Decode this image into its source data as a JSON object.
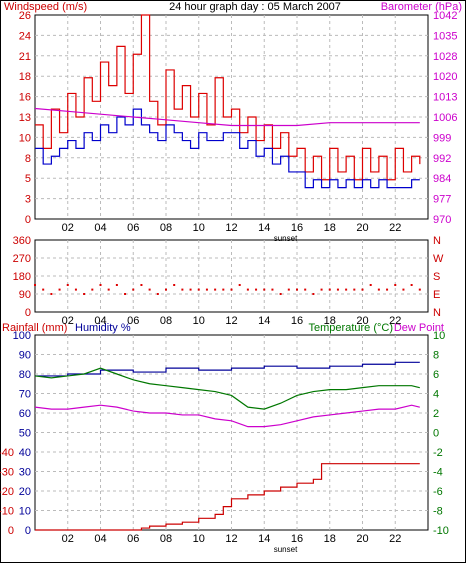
{
  "chart_data": [
    {
      "type": "line",
      "title": "24 hour graph day : 05 March 2007",
      "left_axis_label": "Windspeed (m/s)",
      "right_axis_label": "Barometer (hPa)",
      "left_ylim": [
        0,
        26
      ],
      "left_ticks": [
        "0",
        "3",
        "5",
        "8",
        "10",
        "13",
        "16",
        "18",
        "21",
        "24",
        "26"
      ],
      "right_ylim": [
        970,
        1042
      ],
      "right_ticks": [
        "970",
        "977",
        "984",
        "992",
        "999",
        "1006",
        "1013",
        "1020",
        "1028",
        "1035",
        "1042"
      ],
      "x_ticks": [
        "02",
        "04",
        "06",
        "08",
        "10",
        "12",
        "14",
        "16",
        "18",
        "20",
        "22"
      ],
      "x_annotation": "sunset",
      "grid": true,
      "series": [
        {
          "color": "#dd0000",
          "axis": "left",
          "x": [
            0,
            0.5,
            1,
            1.5,
            2,
            2.5,
            3,
            3.5,
            4,
            4.5,
            5,
            5.5,
            6,
            6.5,
            7,
            7.5,
            8,
            8.5,
            9,
            9.5,
            10,
            10.5,
            11,
            11.5,
            12,
            12.5,
            13,
            13.5,
            14,
            14.5,
            15,
            15.5,
            16,
            16.5,
            17,
            17.5,
            18,
            18.5,
            19,
            19.5,
            20,
            20.5,
            21,
            21.5,
            22,
            22.5,
            23,
            23.5
          ],
          "values": [
            12,
            9,
            14,
            11,
            16,
            13,
            18,
            15,
            20,
            17,
            22,
            16,
            21,
            26,
            15,
            12,
            19,
            14,
            17,
            13,
            16,
            12,
            18,
            13,
            14,
            11,
            13,
            10,
            12,
            9,
            11,
            8,
            9,
            6,
            8,
            5,
            9,
            6,
            8,
            5,
            9,
            6,
            8,
            5,
            9,
            6,
            8,
            7
          ]
        },
        {
          "color": "#0000cc",
          "axis": "left",
          "x": [
            0,
            0.5,
            1,
            1.5,
            2,
            2.5,
            3,
            3.5,
            4,
            4.5,
            5,
            5.5,
            6,
            6.5,
            7,
            7.5,
            8,
            8.5,
            9,
            9.5,
            10,
            10.5,
            11,
            11.5,
            12,
            12.5,
            13,
            13.5,
            14,
            14.5,
            15,
            15.5,
            16,
            16.5,
            17,
            17.5,
            18,
            18.5,
            19,
            19.5,
            20,
            20.5,
            21,
            21.5,
            22,
            22.5,
            23,
            23.5
          ],
          "values": [
            9,
            7,
            8,
            9,
            10,
            9,
            11,
            10,
            12,
            11,
            13,
            12,
            14,
            12,
            11,
            10,
            12,
            11,
            10,
            9,
            11,
            10,
            10,
            11,
            11,
            9,
            10,
            8,
            9,
            7,
            8,
            6,
            6,
            4,
            5,
            4,
            5,
            4,
            5,
            4,
            5,
            4,
            5,
            4,
            4,
            4,
            5,
            5
          ]
        },
        {
          "color": "#cc00cc",
          "axis": "right",
          "x": [
            0,
            2,
            4,
            6,
            8,
            10,
            12,
            14,
            16,
            18,
            20,
            22,
            23.5
          ],
          "values": [
            1009,
            1008,
            1007,
            1006,
            1005,
            1004,
            1003,
            1003,
            1003,
            1004,
            1004,
            1004,
            1004
          ]
        }
      ]
    },
    {
      "type": "scatter",
      "left_ylim": [
        0,
        360
      ],
      "left_ticks": [
        "0",
        "90",
        "180",
        "270",
        "360"
      ],
      "right_ticks": [
        "N",
        "E",
        "S",
        "W",
        "N"
      ],
      "x_ticks": [
        "02",
        "04",
        "06",
        "08",
        "10",
        "12",
        "14",
        "16",
        "18",
        "20",
        "22"
      ],
      "grid": true,
      "series": [
        {
          "color": "#dd0000",
          "x": [
            0,
            0.5,
            1,
            1.5,
            2,
            2.5,
            3,
            3.5,
            4,
            4.5,
            5,
            5.5,
            6,
            6.5,
            7,
            7.5,
            8,
            8.5,
            9,
            9.5,
            10,
            10.5,
            11,
            11.5,
            12,
            12.5,
            13,
            13.5,
            14,
            14.5,
            15,
            15.5,
            16,
            16.5,
            17,
            17.5,
            18,
            18.5,
            19,
            19.5,
            20,
            20.5,
            21,
            21.5,
            22,
            22.5,
            23,
            23.5
          ],
          "values": [
            135,
            112,
            90,
            112,
            135,
            112,
            90,
            112,
            135,
            112,
            135,
            90,
            112,
            135,
            112,
            90,
            112,
            135,
            112,
            112,
            112,
            112,
            112,
            112,
            112,
            135,
            112,
            112,
            112,
            112,
            90,
            112,
            112,
            112,
            90,
            112,
            112,
            112,
            112,
            112,
            112,
            135,
            112,
            112,
            135,
            112,
            135,
            112
          ]
        }
      ]
    },
    {
      "type": "line",
      "left_axis_label": "Rainfall (mm)",
      "left_axis_label_2": "Humidity %",
      "right_axis_label": "Temperature (°C)",
      "right_axis_label_2": "Dew Point",
      "left_ylim": [
        0,
        100
      ],
      "left_ticks": [
        "0",
        "10",
        "20",
        "30",
        "40",
        "50",
        "60",
        "70",
        "80",
        "90",
        "100"
      ],
      "left_ticks_red": [
        "0",
        "-10",
        "-20",
        "-30",
        "-40"
      ],
      "right_ylim": [
        -10,
        10
      ],
      "right_ticks": [
        "-10",
        "-8",
        "-6",
        "-4",
        "-2",
        "0",
        "2",
        "4",
        "6",
        "8",
        "10"
      ],
      "x_ticks": [
        "02",
        "04",
        "06",
        "08",
        "10",
        "12",
        "14",
        "16",
        "18",
        "20",
        "22"
      ],
      "x_annotation": "sunset",
      "grid": true,
      "series": [
        {
          "color": "#000099",
          "axis": "left",
          "x": [
            0,
            2,
            4,
            6,
            8,
            10,
            12,
            14,
            16,
            18,
            20,
            22,
            23.5
          ],
          "values": [
            79,
            80,
            82,
            81,
            83,
            82,
            83,
            84,
            83,
            84,
            85,
            86,
            86
          ]
        },
        {
          "color": "#007700",
          "axis": "right",
          "x": [
            0,
            1,
            2,
            3,
            4,
            5,
            6,
            7,
            8,
            9,
            10,
            11,
            12,
            13,
            14,
            15,
            16,
            17,
            18,
            19,
            20,
            21,
            22,
            23,
            23.5
          ],
          "values": [
            5.8,
            5.6,
            5.8,
            6.0,
            6.6,
            6.0,
            5.4,
            5.0,
            4.8,
            4.6,
            4.4,
            4.2,
            3.8,
            2.6,
            2.4,
            3.0,
            3.8,
            4.2,
            4.4,
            4.4,
            4.6,
            4.8,
            4.8,
            4.8,
            4.6
          ]
        },
        {
          "color": "#cc00cc",
          "axis": "right",
          "x": [
            0,
            1,
            2,
            3,
            4,
            5,
            6,
            7,
            8,
            9,
            10,
            11,
            12,
            13,
            14,
            15,
            16,
            17,
            18,
            19,
            20,
            21,
            22,
            23,
            23.5
          ],
          "values": [
            2.6,
            2.4,
            2.4,
            2.6,
            2.8,
            2.6,
            2.2,
            2.0,
            2.0,
            1.8,
            1.8,
            1.4,
            1.2,
            0.6,
            0.6,
            0.8,
            1.2,
            1.6,
            1.8,
            2.0,
            2.2,
            2.4,
            2.4,
            2.8,
            2.6
          ]
        },
        {
          "color": "#cc0000",
          "axis": "rain",
          "x": [
            0,
            3,
            6,
            6.5,
            7,
            8,
            9,
            10,
            11,
            11.5,
            12,
            13,
            14,
            15,
            16,
            17,
            17.5,
            18,
            19,
            20,
            21,
            22,
            23.5
          ],
          "values": [
            0,
            0,
            0,
            0.5,
            1,
            1.5,
            2,
            3,
            4,
            6,
            8,
            9,
            10,
            11,
            12,
            13,
            17,
            17,
            17,
            17,
            17,
            17,
            17
          ]
        }
      ]
    }
  ]
}
